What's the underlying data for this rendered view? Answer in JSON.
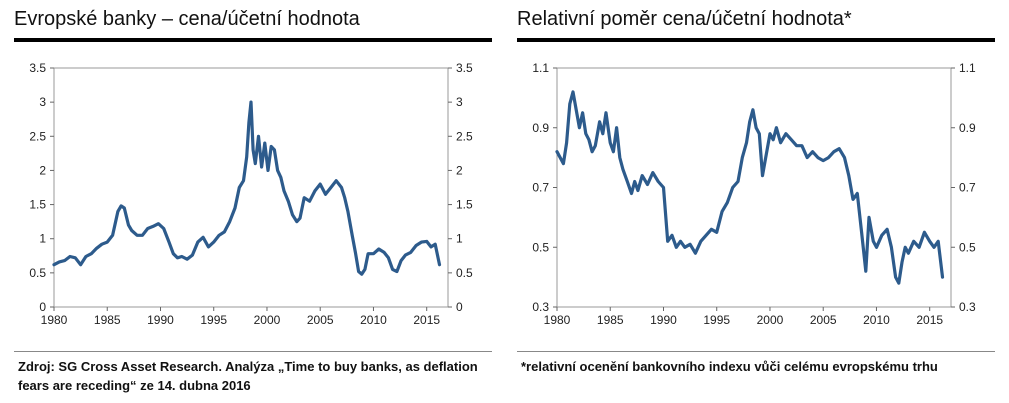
{
  "chart_data": [
    {
      "type": "line",
      "title": "Evropské banky – cena/účetní hodnota",
      "xlabel": "",
      "ylabel": "",
      "xlim": [
        1980,
        2017
      ],
      "ylim": [
        0,
        3.5
      ],
      "x_ticks": [
        "1980",
        "1985",
        "1990",
        "1995",
        "2000",
        "2005",
        "2010",
        "2015"
      ],
      "y_ticks": [
        "0",
        "0.5",
        "1",
        "1.5",
        "2",
        "2.5",
        "3",
        "3.5"
      ],
      "grid": false,
      "series_color": "#2d5b8c",
      "series": [
        {
          "name": "",
          "x": [
            1980.0,
            1980.5,
            1981.0,
            1981.5,
            1982.0,
            1982.5,
            1983.0,
            1983.5,
            1984.0,
            1984.5,
            1985.0,
            1985.5,
            1986.0,
            1986.3,
            1986.6,
            1987.0,
            1987.3,
            1987.8,
            1988.3,
            1988.8,
            1989.3,
            1989.8,
            1990.3,
            1990.8,
            1991.2,
            1991.6,
            1992.0,
            1992.5,
            1993.0,
            1993.5,
            1994.0,
            1994.5,
            1995.0,
            1995.5,
            1996.0,
            1996.5,
            1997.0,
            1997.4,
            1997.8,
            1998.1,
            1998.3,
            1998.5,
            1998.7,
            1998.9,
            1999.2,
            1999.5,
            1999.8,
            2000.1,
            2000.4,
            2000.7,
            2001.0,
            2001.3,
            2001.6,
            2002.0,
            2002.4,
            2002.8,
            2003.1,
            2003.5,
            2004.0,
            2004.5,
            2005.0,
            2005.5,
            2006.0,
            2006.5,
            2007.0,
            2007.3,
            2007.6,
            2008.0,
            2008.3,
            2008.6,
            2008.9,
            2009.2,
            2009.5,
            2010.0,
            2010.5,
            2011.0,
            2011.4,
            2011.8,
            2012.2,
            2012.6,
            2013.0,
            2013.5,
            2014.0,
            2014.5,
            2015.0,
            2015.4,
            2015.8,
            2016.2
          ],
          "values": [
            0.62,
            0.66,
            0.68,
            0.74,
            0.72,
            0.62,
            0.74,
            0.78,
            0.86,
            0.92,
            0.95,
            1.05,
            1.4,
            1.48,
            1.45,
            1.2,
            1.12,
            1.05,
            1.05,
            1.15,
            1.18,
            1.22,
            1.15,
            0.95,
            0.78,
            0.72,
            0.74,
            0.7,
            0.76,
            0.95,
            1.02,
            0.88,
            0.95,
            1.05,
            1.1,
            1.25,
            1.45,
            1.75,
            1.85,
            2.2,
            2.7,
            3.0,
            2.3,
            2.1,
            2.5,
            2.05,
            2.4,
            2.0,
            2.35,
            2.3,
            2.0,
            1.9,
            1.7,
            1.55,
            1.35,
            1.25,
            1.3,
            1.6,
            1.55,
            1.7,
            1.8,
            1.65,
            1.75,
            1.85,
            1.75,
            1.6,
            1.4,
            1.05,
            0.8,
            0.52,
            0.48,
            0.55,
            0.78,
            0.78,
            0.85,
            0.8,
            0.72,
            0.55,
            0.52,
            0.68,
            0.76,
            0.8,
            0.9,
            0.95,
            0.96,
            0.88,
            0.92,
            0.62
          ]
        }
      ],
      "note": "Zdroj: SG Cross Asset Research. Analýza „Time to buy banks, as deflation fears are receding“ ze 14. dubna 2016"
    },
    {
      "type": "line",
      "title": "Relativní poměr cena/účetní hodnota*",
      "xlabel": "",
      "ylabel": "",
      "xlim": [
        1980,
        2017
      ],
      "ylim": [
        0.3,
        1.1
      ],
      "x_ticks": [
        "1980",
        "1985",
        "1990",
        "1995",
        "2000",
        "2005",
        "2010",
        "2015"
      ],
      "y_ticks": [
        "0.3",
        "0.5",
        "0.7",
        "0.9",
        "1.1"
      ],
      "grid": false,
      "series_color": "#2d5b8c",
      "series": [
        {
          "name": "",
          "x": [
            1980.0,
            1980.3,
            1980.6,
            1980.9,
            1981.2,
            1981.5,
            1981.8,
            1982.1,
            1982.4,
            1982.7,
            1983.0,
            1983.3,
            1983.6,
            1984.0,
            1984.3,
            1984.6,
            1985.0,
            1985.3,
            1985.6,
            1985.9,
            1986.2,
            1986.6,
            1987.0,
            1987.3,
            1987.6,
            1988.0,
            1988.5,
            1989.0,
            1989.5,
            1990.0,
            1990.4,
            1990.8,
            1991.2,
            1991.6,
            1992.0,
            1992.5,
            1993.0,
            1993.5,
            1994.0,
            1994.5,
            1995.0,
            1995.5,
            1996.0,
            1996.5,
            1997.0,
            1997.4,
            1997.8,
            1998.1,
            1998.4,
            1998.7,
            1999.0,
            1999.3,
            1999.6,
            2000.0,
            2000.3,
            2000.6,
            2001.0,
            2001.5,
            2002.0,
            2002.5,
            2003.0,
            2003.5,
            2004.0,
            2004.5,
            2005.0,
            2005.5,
            2006.0,
            2006.5,
            2007.0,
            2007.4,
            2007.8,
            2008.2,
            2008.6,
            2009.0,
            2009.3,
            2009.7,
            2010.0,
            2010.5,
            2011.0,
            2011.4,
            2011.8,
            2012.1,
            2012.4,
            2012.7,
            2013.0,
            2013.5,
            2014.0,
            2014.5,
            2015.0,
            2015.4,
            2015.8,
            2016.2
          ],
          "values": [
            0.82,
            0.8,
            0.78,
            0.85,
            0.98,
            1.02,
            0.96,
            0.9,
            0.95,
            0.88,
            0.86,
            0.82,
            0.84,
            0.92,
            0.88,
            0.95,
            0.85,
            0.82,
            0.9,
            0.8,
            0.76,
            0.72,
            0.68,
            0.72,
            0.69,
            0.74,
            0.71,
            0.75,
            0.72,
            0.7,
            0.52,
            0.54,
            0.5,
            0.52,
            0.5,
            0.51,
            0.48,
            0.52,
            0.54,
            0.56,
            0.55,
            0.62,
            0.65,
            0.7,
            0.72,
            0.8,
            0.85,
            0.92,
            0.96,
            0.9,
            0.88,
            0.74,
            0.8,
            0.88,
            0.86,
            0.9,
            0.85,
            0.88,
            0.86,
            0.84,
            0.84,
            0.8,
            0.82,
            0.8,
            0.79,
            0.8,
            0.82,
            0.83,
            0.8,
            0.74,
            0.66,
            0.68,
            0.55,
            0.42,
            0.6,
            0.52,
            0.5,
            0.54,
            0.56,
            0.5,
            0.4,
            0.38,
            0.45,
            0.5,
            0.48,
            0.52,
            0.5,
            0.55,
            0.52,
            0.5,
            0.52,
            0.4
          ]
        }
      ],
      "note": "*relativní ocenění bankovního indexu vůči celému evropskému trhu"
    }
  ]
}
